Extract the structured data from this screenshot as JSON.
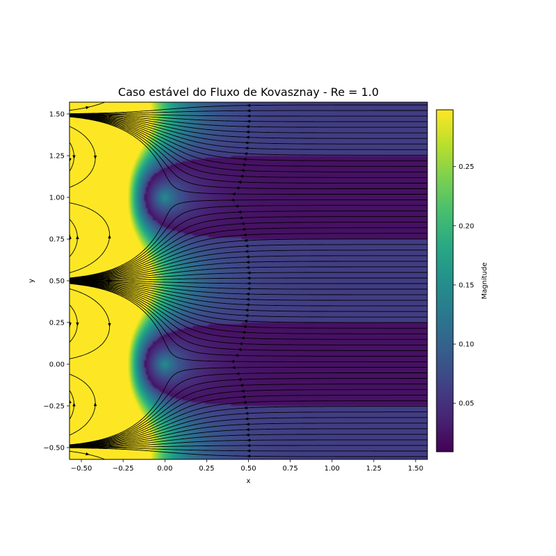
{
  "chart_data": {
    "type": "streamplot",
    "title": "Caso estável do Fluxo de Kovasznay - Re = 1.0",
    "xlabel": "x",
    "ylabel": "y",
    "xlim": [
      -0.5708,
      1.5708
    ],
    "ylim": [
      -0.5708,
      1.5708
    ],
    "x_ticks": [
      -0.5,
      -0.25,
      0.0,
      0.25,
      0.5,
      0.75,
      1.0,
      1.25,
      1.5
    ],
    "x_tick_labels": [
      "−0.50",
      "−0.25",
      "0.00",
      "0.25",
      "0.50",
      "0.75",
      "1.00",
      "1.25",
      "1.50"
    ],
    "y_ticks": [
      -0.5,
      -0.25,
      0.0,
      0.25,
      0.5,
      0.75,
      1.0,
      1.25,
      1.5
    ],
    "y_tick_labels": [
      "−0.50",
      "−0.25",
      "0.00",
      "0.25",
      "0.50",
      "0.75",
      "1.00",
      "1.25",
      "1.50"
    ],
    "reynolds": 1.0,
    "field": "Kovasznay flow velocity magnitude",
    "colormap": "viridis",
    "grid": false,
    "colorbar": {
      "label": "Magnitude",
      "range": [
        0.009,
        0.298
      ],
      "ticks": [
        0.05,
        0.1,
        0.15,
        0.2,
        0.25
      ],
      "tick_labels": [
        "0.05",
        "0.10",
        "0.15",
        "0.20",
        "0.25"
      ],
      "placement": "right"
    }
  }
}
